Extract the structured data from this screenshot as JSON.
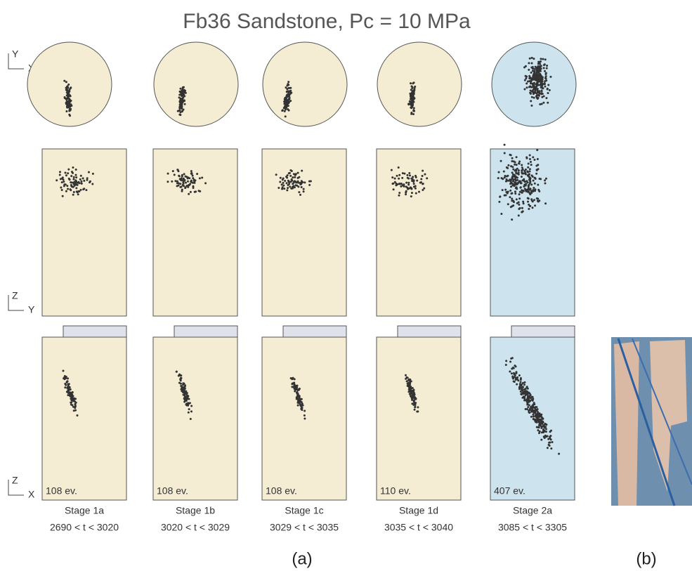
{
  "title": "Fb36 Sandstone, Pc = 10 MPa",
  "axis_labels": {
    "top": [
      "Y",
      "X"
    ],
    "middle": [
      "Z",
      "Y"
    ],
    "bottom": [
      "Z",
      "X"
    ]
  },
  "panels": [
    {
      "events": "108 ev.",
      "stage": "Stage 1a",
      "time": "2690 < t < 3020"
    },
    {
      "events": "108 ev.",
      "stage": "Stage 1b",
      "time": "3020 < t < 3029"
    },
    {
      "events": "108 ev.",
      "stage": "Stage 1c",
      "time": "3029 < t < 3035"
    },
    {
      "events": "110 ev.",
      "stage": "Stage 1d",
      "time": "3035 < t < 3040"
    },
    {
      "events": "407 ev.",
      "stage": "Stage 2a",
      "time": "3085 < t < 3305"
    }
  ],
  "figure_labels": [
    "(a)",
    "(b)"
  ]
}
